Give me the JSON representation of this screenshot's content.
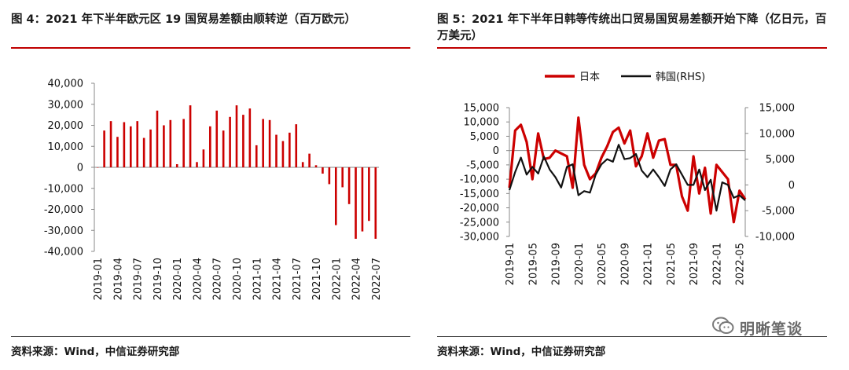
{
  "figure1": {
    "title": "图 4：2021 年下半年欧元区 19 国贸易差额由顺转逆（百万欧元）",
    "source": "资料来源：Wind，中信证券研究部"
  },
  "figure2": {
    "title": "图 5：2021 年下半年日韩等传统出口贸易国贸易差额开始下降（亿日元，百万美元）",
    "source": "资料来源：Wind，中信证券研究部"
  },
  "watermark": {
    "text": "明晰笔谈",
    "icon": "wechat-icon"
  },
  "colors": {
    "red": "#cc0000",
    "black": "#111111",
    "rule_red": "#c00000"
  },
  "chart_data": [
    {
      "type": "bar",
      "title": "",
      "xlabel": "",
      "ylabel": "",
      "ylim": [
        -40000,
        40000
      ],
      "y_ticks": [
        "40,000",
        "30,000",
        "20,000",
        "10,000",
        "0",
        "-10,000",
        "-20,000",
        "-30,000",
        "-40,000"
      ],
      "y_tick_values": [
        40000,
        30000,
        20000,
        10000,
        0,
        -10000,
        -20000,
        -30000,
        -40000
      ],
      "x_tick_labels": [
        "2019-01",
        "2019-04",
        "2019-07",
        "2019-10",
        "2020-01",
        "2020-04",
        "2020-07",
        "2020-10",
        "2021-01",
        "2021-04",
        "2021-07",
        "2021-10",
        "2022-01",
        "2022-04",
        "2022-07"
      ],
      "categories": [
        "2019-01",
        "2019-02",
        "2019-03",
        "2019-04",
        "2019-05",
        "2019-06",
        "2019-07",
        "2019-08",
        "2019-09",
        "2019-10",
        "2019-11",
        "2019-12",
        "2020-01",
        "2020-02",
        "2020-03",
        "2020-04",
        "2020-05",
        "2020-06",
        "2020-07",
        "2020-08",
        "2020-09",
        "2020-10",
        "2020-11",
        "2020-12",
        "2021-01",
        "2021-02",
        "2021-03",
        "2021-04",
        "2021-05",
        "2021-06",
        "2021-07",
        "2021-08",
        "2021-09",
        "2021-10",
        "2021-11",
        "2021-12",
        "2022-01",
        "2022-02",
        "2022-03",
        "2022-04",
        "2022-05",
        "2022-06",
        "2022-07"
      ],
      "values": [
        0,
        17500,
        22000,
        14500,
        21500,
        19500,
        22000,
        14000,
        18000,
        27000,
        20000,
        22500,
        1500,
        23000,
        29500,
        2500,
        8500,
        19500,
        27000,
        17500,
        24000,
        29500,
        25000,
        28000,
        10500,
        23000,
        22500,
        15500,
        12500,
        16500,
        20500,
        2500,
        6500,
        1000,
        -3000,
        -8000,
        -27500,
        -9500,
        -17500,
        -34000,
        -30500,
        -25500,
        -34000
      ],
      "bar_color": "#cc0000"
    },
    {
      "type": "line",
      "title": "",
      "xlabel": "",
      "ylabel": "",
      "ylim_left": [
        -30000,
        15000
      ],
      "ylim_right": [
        -10000,
        15000
      ],
      "y_ticks_left": [
        "15,000",
        "10,000",
        "5,000",
        "0",
        "-5,000",
        "-10,000",
        "-15,000",
        "-20,000",
        "-25,000",
        "-30,000"
      ],
      "y_tick_values_left": [
        15000,
        10000,
        5000,
        0,
        -5000,
        -10000,
        -15000,
        -20000,
        -25000,
        -30000
      ],
      "y_ticks_right": [
        "15,000",
        "10,000",
        "5,000",
        "0",
        "-5,000",
        "-10,000"
      ],
      "y_tick_values_right": [
        15000,
        10000,
        5000,
        0,
        -5000,
        -10000
      ],
      "x_tick_labels": [
        "2019-01",
        "2019-05",
        "2019-09",
        "2020-01",
        "2020-05",
        "2020-09",
        "2021-01",
        "2021-05",
        "2021-09",
        "2022-01",
        "2022-05"
      ],
      "x": [
        "2019-01",
        "2019-02",
        "2019-03",
        "2019-04",
        "2019-05",
        "2019-06",
        "2019-07",
        "2019-08",
        "2019-09",
        "2019-10",
        "2019-11",
        "2019-12",
        "2020-01",
        "2020-02",
        "2020-03",
        "2020-04",
        "2020-05",
        "2020-06",
        "2020-07",
        "2020-08",
        "2020-09",
        "2020-10",
        "2020-11",
        "2020-12",
        "2021-01",
        "2021-02",
        "2021-03",
        "2021-04",
        "2021-05",
        "2021-06",
        "2021-07",
        "2021-08",
        "2021-09",
        "2021-10",
        "2021-11",
        "2021-12",
        "2022-01",
        "2022-02",
        "2022-03",
        "2022-04",
        "2022-05",
        "2022-06"
      ],
      "legend_position": "top-center",
      "series": [
        {
          "name": "日本",
          "axis": "left",
          "color": "#cc0000",
          "values": [
            -13000,
            7000,
            9000,
            3000,
            -10000,
            6000,
            -3000,
            -2500,
            0,
            -1000,
            -2000,
            -13000,
            11500,
            -5000,
            -10000,
            -8000,
            -2500,
            1500,
            6500,
            8000,
            2500,
            7000,
            -5500,
            -2000,
            6000,
            -2500,
            3500,
            4000,
            -5000,
            -5000,
            -16000,
            -21000,
            -2000,
            -15000,
            -6000,
            -22000,
            -5000,
            -7500,
            -10000,
            -25000,
            -14000,
            -17000
          ]
        },
        {
          "name": "韩国(RHS)",
          "axis": "right",
          "color": "#111111",
          "values": [
            -1000,
            2500,
            5300,
            2000,
            3500,
            2200,
            5500,
            3000,
            1500,
            -500,
            3500,
            4000,
            -2000,
            -1200,
            -1500,
            2000,
            4000,
            5000,
            4500,
            7800,
            5000,
            5200,
            6000,
            2800,
            1500,
            3000,
            1500,
            -200,
            3000,
            4000,
            2000,
            0,
            0,
            3000,
            -1000,
            1000,
            -5000,
            500,
            0,
            -2500,
            -2000,
            -3000
          ]
        }
      ]
    }
  ]
}
